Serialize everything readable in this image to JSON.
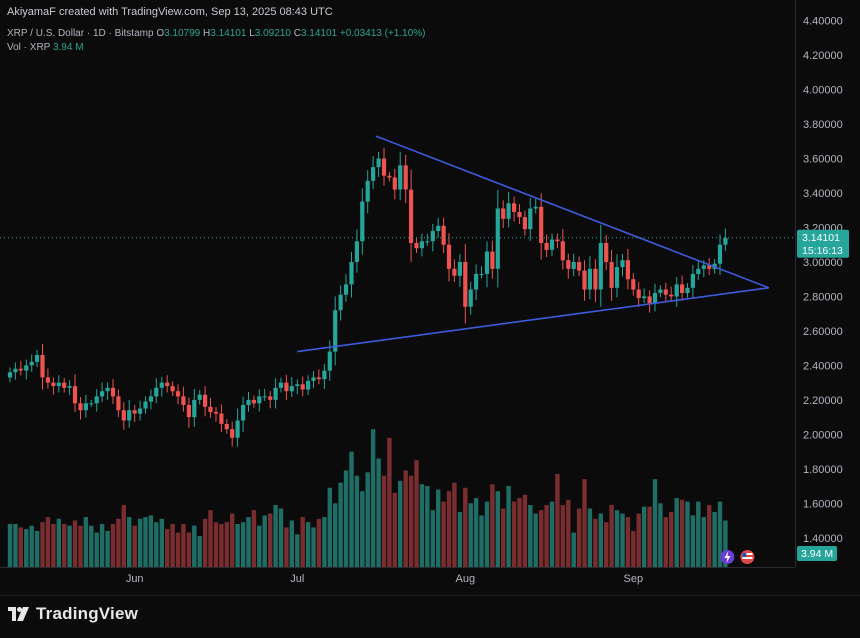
{
  "header": {
    "attribution": "AkiyamaF created with TradingView.com, Sep 13, 2025 08:43 UTC",
    "symbol": "XRP / U.S. Dollar · 1D · Bitstamp",
    "ohlc": {
      "o_label": "O",
      "o": "3.10799",
      "h_label": "H",
      "h": "3.14101",
      "l_label": "L",
      "l": "3.09210",
      "c_label": "C",
      "c": "3.14101",
      "change": "+0.03413 (+1.10%)"
    },
    "vol_label": "Vol · XRP",
    "vol_value": "3.94 M"
  },
  "colors": {
    "up": "#26a69a",
    "down": "#ef5350",
    "up_vol": "#1f6e66",
    "down_vol": "#7a2d2f",
    "trendline": "#3d5bdb",
    "background": "#0b0b0c",
    "price_tag": "#26a69a"
  },
  "price_label": {
    "price": "3.14101",
    "countdown": "15:16:13"
  },
  "volume_label": "3.94 M",
  "brand": "TradingView",
  "chart_data": {
    "type": "candlestick",
    "ylim": [
      1.3,
      4.45
    ],
    "y_ticks": [
      "4.40000",
      "4.20000",
      "4.00000",
      "3.80000",
      "3.60000",
      "3.40000",
      "3.20000",
      "3.00000",
      "2.80000",
      "2.60000",
      "2.40000",
      "2.20000",
      "2.00000",
      "1.80000",
      "1.60000",
      "1.40000"
    ],
    "x_ticks": [
      {
        "label": "Jun",
        "index": 23
      },
      {
        "label": "Jul",
        "index": 53
      },
      {
        "label": "Aug",
        "index": 84
      },
      {
        "label": "Sep",
        "index": 115
      }
    ],
    "closes": [
      2.36,
      2.38,
      2.37,
      2.4,
      2.42,
      2.46,
      2.33,
      2.3,
      2.28,
      2.3,
      2.27,
      2.28,
      2.18,
      2.14,
      2.18,
      2.18,
      2.22,
      2.25,
      2.27,
      2.22,
      2.14,
      2.08,
      2.14,
      2.12,
      2.15,
      2.19,
      2.22,
      2.27,
      2.3,
      2.28,
      2.25,
      2.22,
      2.17,
      2.1,
      2.2,
      2.23,
      2.16,
      2.13,
      2.12,
      2.06,
      2.03,
      1.98,
      2.08,
      2.17,
      2.2,
      2.18,
      2.22,
      2.22,
      2.2,
      2.27,
      2.3,
      2.25,
      2.28,
      2.29,
      2.26,
      2.31,
      2.33,
      2.32,
      2.37,
      2.48,
      2.72,
      2.81,
      2.87,
      3.0,
      3.12,
      3.35,
      3.47,
      3.55,
      3.6,
      3.5,
      3.49,
      3.42,
      3.56,
      3.42,
      3.11,
      3.08,
      3.12,
      3.12,
      3.18,
      3.21,
      3.1,
      2.96,
      2.92,
      3.0,
      2.74,
      2.84,
      2.93,
      2.93,
      3.06,
      2.96,
      3.31,
      3.25,
      3.34,
      3.29,
      3.26,
      3.19,
      3.31,
      3.32,
      3.11,
      3.07,
      3.13,
      3.12,
      3.01,
      2.96,
      3.0,
      2.95,
      2.84,
      2.96,
      2.84,
      3.11,
      3.0,
      2.85,
      2.97,
      3.01,
      2.9,
      2.84,
      2.79,
      2.8,
      2.76,
      2.82,
      2.84,
      2.81,
      2.8,
      2.87,
      2.82,
      2.85,
      2.93,
      2.96,
      2.98,
      2.96,
      2.99,
      3.1,
      3.14
    ],
    "volumes": [
      1.48,
      1.48,
      1.46,
      1.45,
      1.47,
      1.44,
      1.49,
      1.52,
      1.48,
      1.51,
      1.48,
      1.47,
      1.5,
      1.47,
      1.52,
      1.47,
      1.43,
      1.48,
      1.44,
      1.48,
      1.51,
      1.59,
      1.52,
      1.47,
      1.51,
      1.52,
      1.53,
      1.49,
      1.51,
      1.45,
      1.48,
      1.43,
      1.48,
      1.43,
      1.47,
      1.41,
      1.51,
      1.56,
      1.49,
      1.48,
      1.49,
      1.54,
      1.48,
      1.49,
      1.52,
      1.56,
      1.47,
      1.53,
      1.54,
      1.59,
      1.57,
      1.46,
      1.5,
      1.42,
      1.52,
      1.49,
      1.46,
      1.51,
      1.52,
      1.69,
      1.6,
      1.72,
      1.79,
      1.9,
      1.76,
      1.67,
      1.78,
      2.03,
      1.86,
      1.76,
      1.98,
      1.66,
      1.73,
      1.79,
      1.76,
      1.85,
      1.71,
      1.7,
      1.56,
      1.68,
      1.61,
      1.67,
      1.72,
      1.55,
      1.69,
      1.6,
      1.63,
      1.53,
      1.61,
      1.71,
      1.67,
      1.57,
      1.7,
      1.61,
      1.63,
      1.65,
      1.59,
      1.54,
      1.56,
      1.59,
      1.61,
      1.77,
      1.59,
      1.62,
      1.43,
      1.57,
      1.74,
      1.57,
      1.51,
      1.54,
      1.49,
      1.59,
      1.56,
      1.54,
      1.52,
      1.44,
      1.54,
      1.58,
      1.58,
      1.74,
      1.6,
      1.52,
      1.55,
      1.63,
      1.62,
      1.61,
      1.53,
      1.61,
      1.52,
      1.59,
      1.55,
      1.61,
      1.5
    ]
  },
  "drawings": {
    "upper_trendline": [
      [
        67.5,
        3.73
      ],
      [
        140.0,
        2.85
      ]
    ],
    "lower_trendline": [
      [
        53.0,
        2.48
      ],
      [
        140.0,
        2.85
      ]
    ]
  }
}
